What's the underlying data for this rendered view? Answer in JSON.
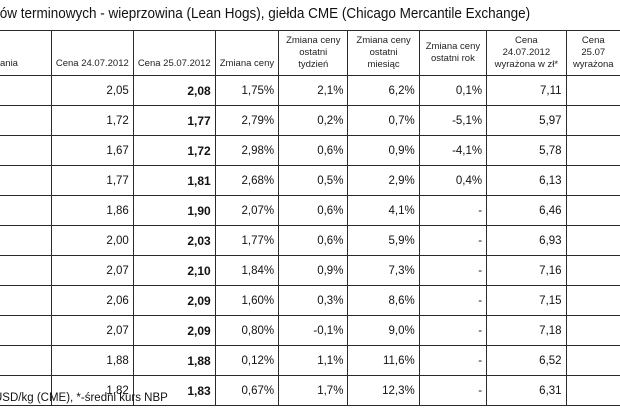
{
  "title": "któw terminowych - wieprzowina (Lean Hogs), giełda CME (Chicago Mercantile Exchange)",
  "headers": [
    [
      "ania"
    ],
    [
      "Cena 24.07.2012"
    ],
    [
      "Cena 25.07.2012"
    ],
    [
      "Zmiana ceny"
    ],
    [
      "Zmiana ceny",
      "ostatni tydzień"
    ],
    [
      "Zmiana ceny",
      "ostatni miesiąc"
    ],
    [
      "Zmiana ceny",
      "ostatni rok"
    ],
    [
      "Cena 24.07.2012",
      "wyrażona w zł*"
    ],
    [
      "Cena 25.07",
      "wyrażona"
    ]
  ],
  "rows": [
    [
      "",
      "2,05",
      "2,08",
      "1,75%",
      "2,1%",
      "6,2%",
      "0,1%",
      "7,11",
      ""
    ],
    [
      "",
      "1,72",
      "1,77",
      "2,79%",
      "0,2%",
      "0,7%",
      "-5,1%",
      "5,97",
      ""
    ],
    [
      "",
      "1,67",
      "1,72",
      "2,98%",
      "0,6%",
      "0,9%",
      "-4,1%",
      "5,78",
      ""
    ],
    [
      "",
      "1,77",
      "1,81",
      "2,68%",
      "0,5%",
      "2,9%",
      "0,4%",
      "6,13",
      ""
    ],
    [
      "",
      "1,86",
      "1,90",
      "2,07%",
      "0,6%",
      "4,1%",
      "-",
      "6,46",
      ""
    ],
    [
      "",
      "2,00",
      "2,03",
      "1,77%",
      "0,6%",
      "5,9%",
      "-",
      "6,93",
      ""
    ],
    [
      "",
      "2,07",
      "2,10",
      "1,84%",
      "0,9%",
      "7,3%",
      "-",
      "7,16",
      ""
    ],
    [
      "",
      "2,06",
      "2,09",
      "1,60%",
      "0,3%",
      "8,6%",
      "-",
      "7,15",
      ""
    ],
    [
      "",
      "2,07",
      "2,09",
      "0,80%",
      "-0,1%",
      "9,0%",
      "-",
      "7,18",
      ""
    ],
    [
      "",
      "1,88",
      "1,88",
      "0,12%",
      "1,1%",
      "11,6%",
      "-",
      "6,52",
      ""
    ],
    [
      "",
      "1,82",
      "1,83",
      "0,67%",
      "1,7%",
      "12,3%",
      "-",
      "6,31",
      ""
    ]
  ],
  "footnote": "USD/kg (CME), *-średni kurs NBP"
}
